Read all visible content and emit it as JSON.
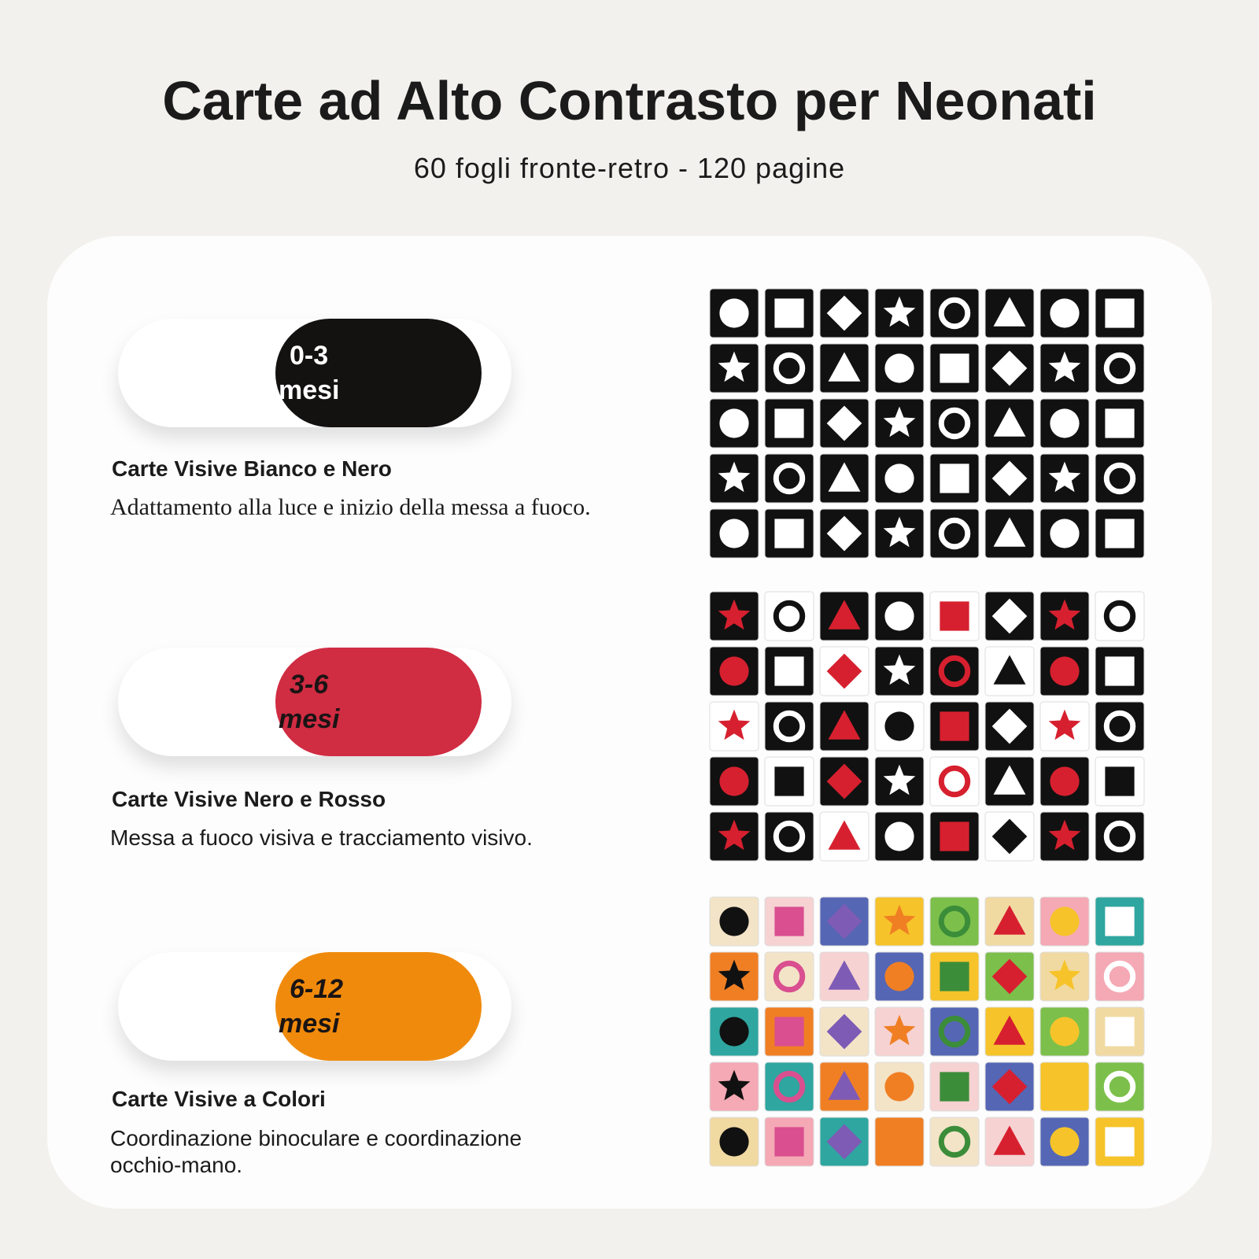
{
  "header": {
    "title": "Carte ad Alto Contrasto per Neonati",
    "subtitle": "60 fogli fronte-retro - 120 pagine"
  },
  "sections": [
    {
      "badge": {
        "age": "0-3",
        "unit": "mesi"
      },
      "heading": "Carte Visive Bianco e Nero",
      "description": "Adattamento alla luce e inizio della messa a fuoco."
    },
    {
      "badge": {
        "age": "3-6",
        "unit": "mesi"
      },
      "heading": "Carte Visive Nero e Rosso",
      "description": "Messa a fuoco visiva e tracciamento visivo."
    },
    {
      "badge": {
        "age": "6-12",
        "unit": "mesi"
      },
      "heading": "Carte Visive a Colori",
      "description": "Coordinazione binoculare e coordinazione occhio-mano."
    }
  ]
}
